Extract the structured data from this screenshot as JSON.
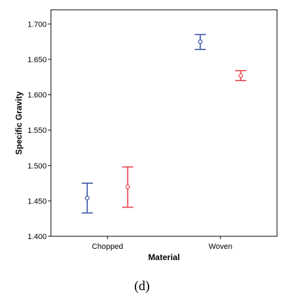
{
  "caption": "(d)",
  "chart_data": {
    "type": "errorbar",
    "xlabel": "Material",
    "ylabel": "Specific Gravity",
    "categories": [
      "Chopped",
      "Woven"
    ],
    "ylim": [
      1.4,
      1.72
    ],
    "yticks": [
      1.4,
      1.45,
      1.5,
      1.55,
      1.6,
      1.65,
      1.7
    ],
    "ytick_labels": [
      "1.400",
      "1.450",
      "1.500",
      "1.550",
      "1.600",
      "1.650",
      "1.700"
    ],
    "grid": false,
    "legend": "none",
    "series": [
      {
        "color": "#3a55a4",
        "mean": [
          1.454,
          1.675
        ],
        "lower": [
          1.433,
          1.664
        ],
        "upper": [
          1.475,
          1.685
        ]
      },
      {
        "color": "#e8434f",
        "mean": [
          1.47,
          1.627
        ],
        "lower": [
          1.441,
          1.62
        ],
        "upper": [
          1.498,
          1.634
        ]
      }
    ]
  }
}
